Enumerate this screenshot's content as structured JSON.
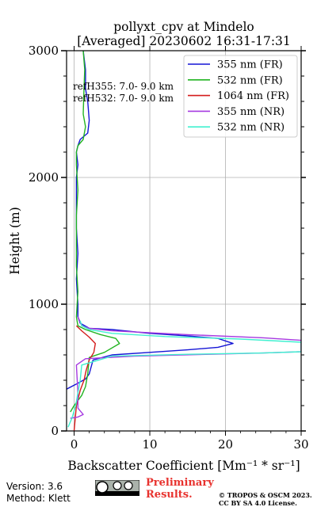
{
  "chart_data": {
    "type": "line",
    "title": "pollyxt_cpv at Mindelo",
    "subtitle": "[Averaged] 20230602 16:31-17:31",
    "xlabel": "Backscatter Coefficient [Mm⁻¹ * sr⁻¹]",
    "ylabel": "Height (m)",
    "xlim": [
      -1,
      30
    ],
    "ylim": [
      0,
      3000
    ],
    "xticks": [
      "0",
      "10",
      "20",
      "30"
    ],
    "yticks": [
      "0",
      "1000",
      "2000",
      "3000"
    ],
    "grid": true,
    "legend_position": "top-right",
    "annotations": [
      "refH355:  7.0- 9.0 km",
      "refH532:  7.0- 9.0 km"
    ],
    "series": [
      {
        "name": "355 nm (FR)",
        "color": "#1515d6",
        "x": [
          -1.0,
          0.3,
          1.5,
          2.0,
          2.5,
          5,
          10,
          15,
          19,
          21,
          19,
          15,
          10,
          5,
          2.0,
          0.8,
          0.5,
          0.5,
          0.3,
          0.5,
          0.3,
          0.3,
          0.3,
          0.5,
          0.3,
          0.5,
          0.8,
          1.8,
          2.0,
          1.8,
          1.5,
          1.5,
          1.2
        ],
        "y": [
          330,
          370,
          410,
          450,
          560,
          600,
          620,
          640,
          660,
          690,
          730,
          750,
          770,
          800,
          810,
          850,
          900,
          1000,
          1200,
          1400,
          1600,
          1800,
          2000,
          2100,
          2200,
          2250,
          2300,
          2350,
          2450,
          2600,
          2700,
          2850,
          3000
        ]
      },
      {
        "name": "532 nm (FR)",
        "color": "#22b422",
        "x": [
          -0.5,
          0.0,
          1.0,
          1.5,
          1.8,
          2.0,
          4.0,
          6.0,
          5.5,
          3.5,
          1.5,
          0.5,
          0.3,
          0.5,
          0.3,
          0.3,
          0.3,
          0.5,
          0.3,
          0.3,
          0.5,
          1.2,
          1.5,
          1.2,
          1.3,
          1.4,
          1.2
        ],
        "y": [
          150,
          200,
          280,
          350,
          450,
          580,
          620,
          690,
          730,
          760,
          800,
          830,
          900,
          1100,
          1300,
          1500,
          1700,
          1900,
          2100,
          2200,
          2250,
          2300,
          2400,
          2500,
          2700,
          2850,
          3000
        ]
      },
      {
        "name": "1064 nm (FR)",
        "color": "#d41c1c",
        "x": [
          0.0,
          0.3,
          0.8,
          1.3,
          1.6,
          2.0,
          2.6,
          2.8,
          2.0,
          1.0,
          0.3
        ],
        "y": [
          0,
          200,
          320,
          400,
          480,
          560,
          620,
          690,
          740,
          790,
          830
        ]
      },
      {
        "name": "355 nm (NR)",
        "color": "#a63ae0",
        "x": [
          -0.5,
          0.5,
          1.2,
          0.5,
          0.5,
          0.3,
          1.5,
          8,
          18,
          25,
          30,
          30,
          25,
          15,
          5,
          2,
          1.0,
          0.8,
          0.5
        ],
        "y": [
          100,
          110,
          130,
          180,
          300,
          520,
          570,
          590,
          605,
          615,
          625,
          715,
          735,
          760,
          790,
          810,
          830,
          860,
          900
        ]
      },
      {
        "name": "532 nm (NR)",
        "color": "#40f0d0",
        "x": [
          -0.8,
          -0.3,
          0.2,
          0.5,
          0.8,
          1.0,
          5,
          15,
          25,
          30,
          30,
          22,
          12,
          5,
          2,
          1.0,
          0.8
        ],
        "y": [
          30,
          100,
          200,
          300,
          400,
          520,
          590,
          605,
          615,
          625,
          700,
          725,
          745,
          770,
          800,
          830,
          870
        ]
      }
    ]
  },
  "footer": {
    "version": "Version: 3.6",
    "method": "Method: Klett",
    "preliminary_line1": "Preliminary",
    "preliminary_line2": "Results.",
    "copyright_line1": "© TROPOS & OSCM 2023.",
    "copyright_line2": "CC BY SA 4.0 License.",
    "license_badge": "cc-by-sa-icon"
  }
}
